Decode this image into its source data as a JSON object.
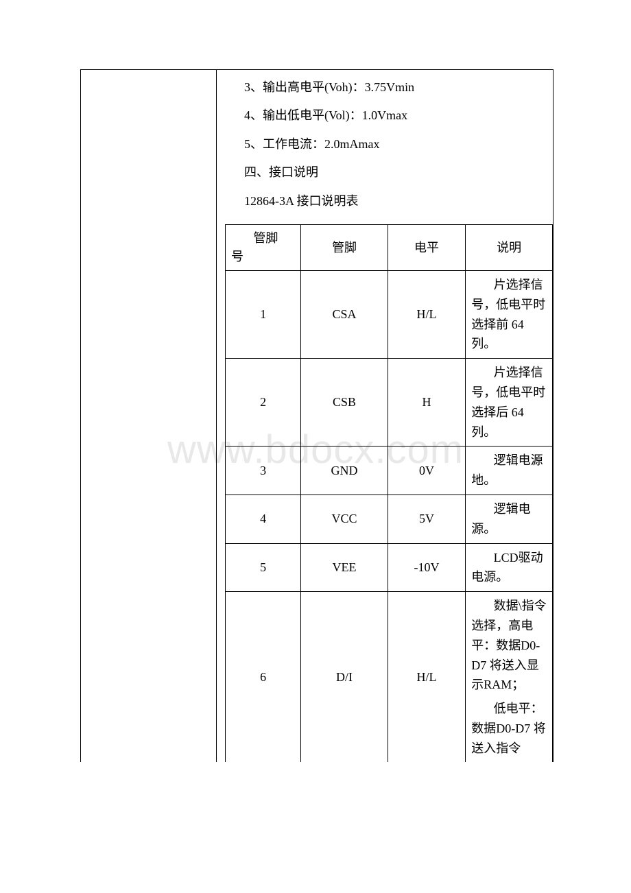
{
  "watermark": "www.bdocx.com",
  "text_lines": {
    "line3": "3、输出高电平(Voh)：3.75Vmin",
    "line4": "4、输出低电平(Vol)：1.0Vmax",
    "line5": "5、工作电流：2.0mAmax",
    "section4_title": "四、接口说明",
    "table_title": "12864-3A 接口说明表"
  },
  "table": {
    "headers": {
      "pin_no_line1": "管脚",
      "pin_no_line2": "号",
      "pin_name": "管脚",
      "level": "电平",
      "description": "说明"
    },
    "rows": [
      {
        "pin_no": "1",
        "pin_name": "CSA",
        "level": "H/L",
        "desc": "片选择信号，低电平时选择前 64列。"
      },
      {
        "pin_no": "2",
        "pin_name": "CSB",
        "level": "H",
        "desc": "片选择信号，低电平时选择后 64列。"
      },
      {
        "pin_no": "3",
        "pin_name": "GND",
        "level": "0V",
        "desc": "逻辑电源地。"
      },
      {
        "pin_no": "4",
        "pin_name": "VCC",
        "level": "5V",
        "desc": "逻辑电源。"
      },
      {
        "pin_no": "5",
        "pin_name": "VEE",
        "level": "-10V",
        "desc": "LCD驱动电源。"
      },
      {
        "pin_no": "6",
        "pin_name": "D/I",
        "level": "H/L",
        "desc_p1": "数据\\指令选择，高电平：数据D0-D7 将送入显示RAM；",
        "desc_p2": "低电平：数据D0-D7 将送入指令"
      }
    ]
  }
}
